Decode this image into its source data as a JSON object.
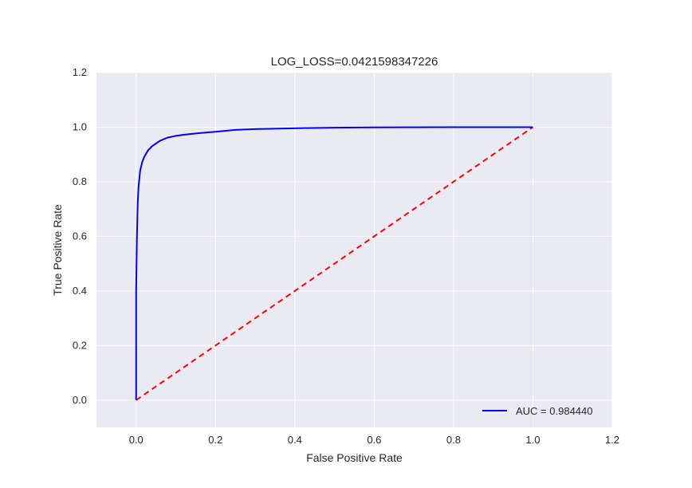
{
  "chart_data": {
    "type": "line",
    "title": "LOG_LOSS=0.0421598347226",
    "xlabel": "False Positive Rate",
    "ylabel": "True Positive Rate",
    "xlim": [
      -0.1,
      1.2
    ],
    "ylim": [
      -0.1,
      1.2
    ],
    "xticks": [
      "0.0",
      "0.2",
      "0.4",
      "0.6",
      "0.8",
      "1.0",
      "1.2"
    ],
    "yticks": [
      "0.0",
      "0.2",
      "0.4",
      "0.6",
      "0.8",
      "1.0",
      "1.2"
    ],
    "xtick_values": [
      0.0,
      0.2,
      0.4,
      0.6,
      0.8,
      1.0,
      1.2
    ],
    "ytick_values": [
      0.0,
      0.2,
      0.4,
      0.6,
      0.8,
      1.0,
      1.2
    ],
    "grid": true,
    "legend_position": "lower-right",
    "series": [
      {
        "name": "AUC = 0.984440",
        "color": "#0000ff",
        "style": "solid",
        "x": [
          0.0,
          0.0,
          0.002,
          0.004,
          0.006,
          0.008,
          0.01,
          0.015,
          0.02,
          0.03,
          0.04,
          0.05,
          0.06,
          0.08,
          0.1,
          0.12,
          0.15,
          0.2,
          0.25,
          0.3,
          0.4,
          0.5,
          0.6,
          0.7,
          0.8,
          0.9,
          1.0
        ],
        "y": [
          0.0,
          0.4,
          0.6,
          0.72,
          0.78,
          0.81,
          0.84,
          0.87,
          0.89,
          0.915,
          0.93,
          0.94,
          0.95,
          0.962,
          0.968,
          0.972,
          0.977,
          0.983,
          0.99,
          0.993,
          0.996,
          0.998,
          0.999,
          0.9995,
          1.0,
          1.0,
          1.0
        ]
      },
      {
        "color": "#ff0000",
        "style": "dashed",
        "x": [
          0.0,
          1.0
        ],
        "y": [
          0.0,
          1.0
        ]
      }
    ],
    "legend": {
      "label": "AUC = 0.984440"
    }
  }
}
